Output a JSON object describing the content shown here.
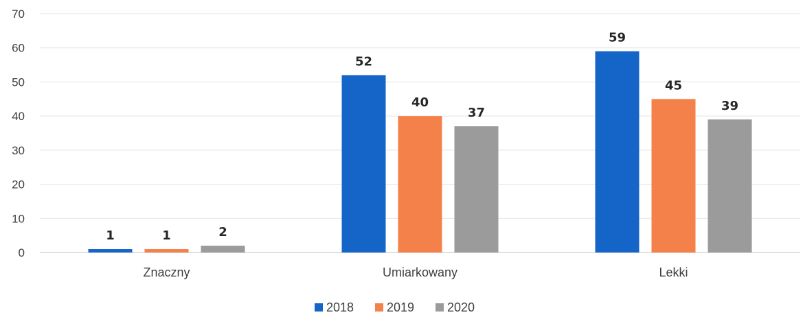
{
  "chart_data": {
    "type": "bar",
    "title": "",
    "xlabel": "",
    "ylabel": "",
    "categories": [
      "Znaczny",
      "Umiarkowany",
      "Lekki"
    ],
    "series": [
      {
        "name": "2018",
        "values": [
          1,
          52,
          59
        ],
        "color": "#1565c8"
      },
      {
        "name": "2019",
        "values": [
          1,
          40,
          45
        ],
        "color": "#f5814a"
      },
      {
        "name": "2020",
        "values": [
          2,
          37,
          39
        ],
        "color": "#9b9b9b"
      }
    ],
    "ylim": [
      0,
      70
    ],
    "yticks": [
      "0",
      "10",
      "20",
      "30",
      "40",
      "50",
      "60",
      "70"
    ],
    "grid": true,
    "legend_position": "bottom",
    "data_labels": true
  }
}
